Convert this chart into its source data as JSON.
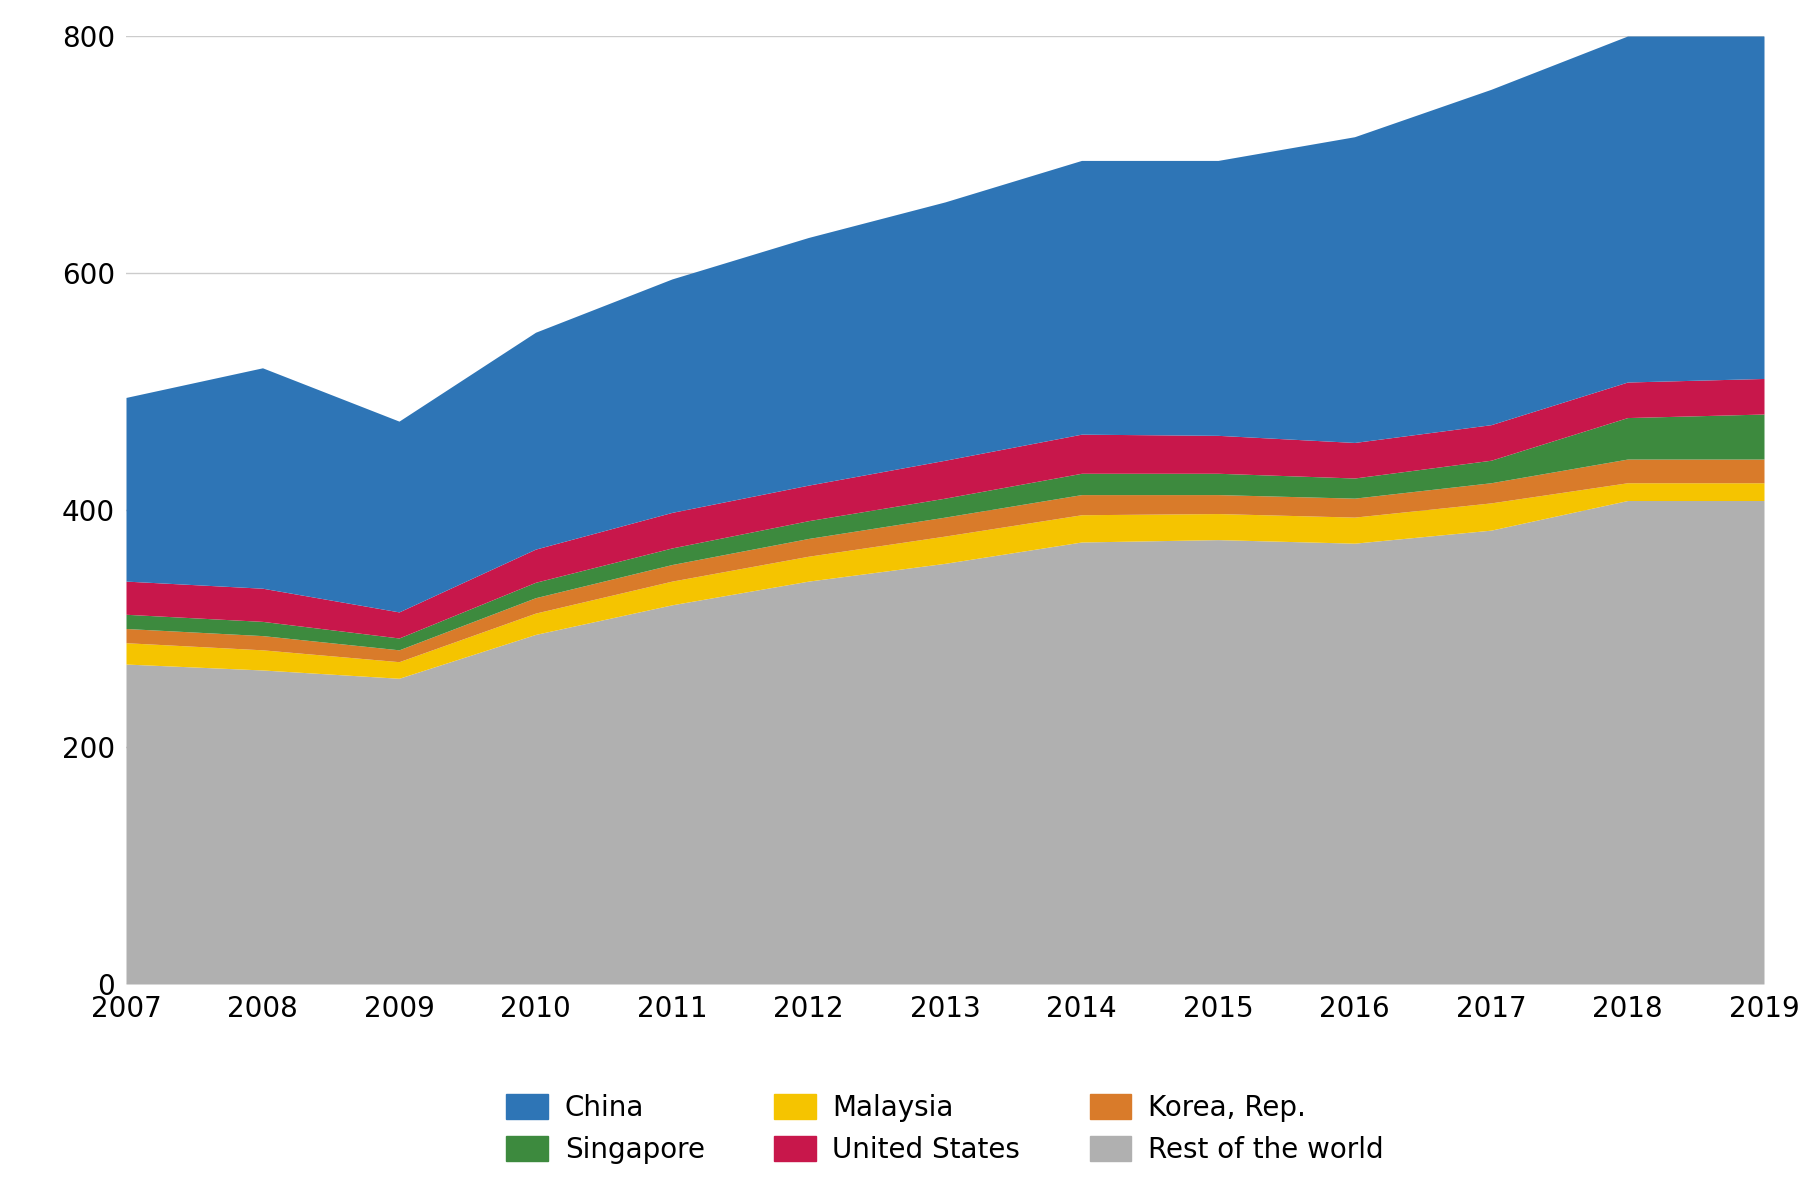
{
  "years": [
    2007,
    2008,
    2009,
    2010,
    2011,
    2012,
    2013,
    2014,
    2015,
    2016,
    2017,
    2018,
    2019
  ],
  "series": {
    "Rest of the world": [
      270,
      265,
      258,
      295,
      320,
      340,
      355,
      373,
      375,
      372,
      383,
      408,
      408
    ],
    "Malaysia": [
      18,
      17,
      14,
      18,
      20,
      21,
      23,
      23,
      22,
      22,
      23,
      15,
      15
    ],
    "Korea, Rep.": [
      12,
      12,
      10,
      13,
      14,
      15,
      16,
      17,
      16,
      16,
      17,
      20,
      20
    ],
    "Singapore": [
      12,
      12,
      10,
      13,
      14,
      15,
      16,
      18,
      18,
      17,
      19,
      35,
      38
    ],
    "United States": [
      28,
      28,
      22,
      28,
      30,
      30,
      32,
      33,
      32,
      30,
      30,
      30,
      30
    ],
    "China": [
      155,
      186,
      161,
      183,
      197,
      209,
      218,
      231,
      232,
      258,
      283,
      292,
      289
    ]
  },
  "colors": {
    "Rest of the world": "#b0b0b0",
    "Malaysia": "#f5c400",
    "Korea, Rep.": "#d97b2a",
    "Singapore": "#3d8a3e",
    "United States": "#c8174b",
    "China": "#2e75b6"
  },
  "stack_order": [
    "Rest of the world",
    "Malaysia",
    "Korea, Rep.",
    "Singapore",
    "United States",
    "China"
  ],
  "ylim": [
    0,
    800
  ],
  "yticks": [
    0,
    200,
    400,
    600,
    800
  ],
  "legend_order": [
    "China",
    "Singapore",
    "Malaysia",
    "United States",
    "Korea, Rep.",
    "Rest of the world"
  ],
  "background_color": "#ffffff",
  "grid_color": "#cccccc",
  "tick_fontsize": 20,
  "legend_fontsize": 20
}
